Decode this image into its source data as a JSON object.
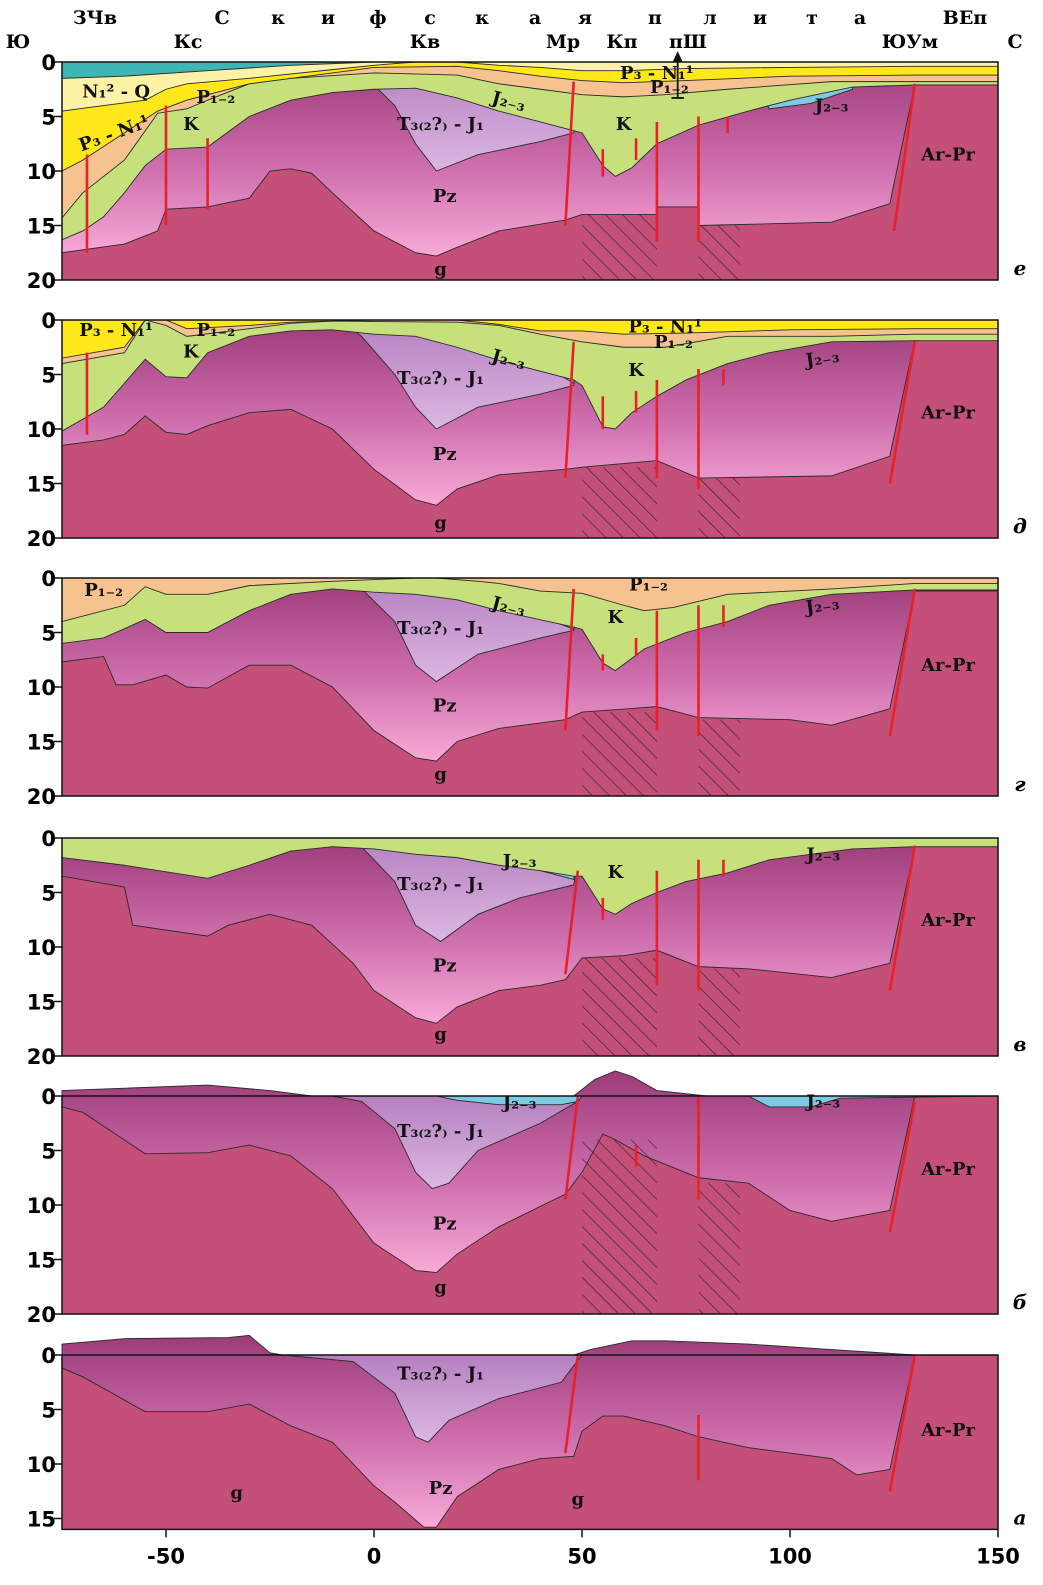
{
  "header": {
    "top_labels": [
      "ЗЧв",
      "ВЕп"
    ],
    "title_letters": [
      "С",
      "к",
      "и",
      "ф",
      "с",
      "к",
      "а",
      "я",
      "п",
      "л",
      "и",
      "т",
      "а"
    ],
    "structure_labels": [
      "Ю",
      "Кс",
      "Кв",
      "Мр",
      "Кп",
      "пШ",
      "ЮУм",
      "С"
    ]
  },
  "xlim": [
    -75,
    150
  ],
  "xticks": [
    -50,
    0,
    50,
    100,
    150
  ],
  "panels": [
    {
      "letter": "е",
      "ylim": [
        0,
        20
      ],
      "yticks": [
        0,
        5,
        10,
        15,
        20
      ],
      "labels": [
        "N₁² - Q",
        "P₁₋₂",
        "P₃ - N₁¹",
        "K",
        "T₃₍₂?₎ - J₁",
        "J₂₋₃",
        "P₃ - N₁¹",
        "P₁₋₂",
        "K",
        "J₂₋₃",
        "Pz",
        "g",
        "Ar-Pr"
      ]
    },
    {
      "letter": "д",
      "ylim": [
        0,
        20
      ],
      "yticks": [
        0,
        5,
        10,
        15,
        20
      ],
      "labels": [
        "P₃ - N₁¹",
        "P₁₋₂",
        "K",
        "T₃₍₂?₎ - J₁",
        "J₂₋₃",
        "P₃ - N₁¹",
        "P₁₋₂",
        "K",
        "J₂₋₃",
        "Pz",
        "g",
        "Ar-Pr"
      ]
    },
    {
      "letter": "г",
      "ylim": [
        0,
        20
      ],
      "yticks": [
        0,
        5,
        10,
        15,
        20
      ],
      "labels": [
        "P₁₋₂",
        "T₃₍₂?₎ - J₁",
        "J₂₋₃",
        "P₁₋₂",
        "K",
        "J₂₋₃",
        "Pz",
        "g",
        "Ar-Pr"
      ]
    },
    {
      "letter": "в",
      "ylim": [
        0,
        20
      ],
      "yticks": [
        0,
        5,
        10,
        15,
        20
      ],
      "labels": [
        "J₂₋₃",
        "T₃₍₂?₎ - J₁",
        "K",
        "J₂₋₃",
        "Pz",
        "g",
        "Ar-Pr"
      ]
    },
    {
      "letter": "б",
      "ylim": [
        0,
        20
      ],
      "yticks": [
        0,
        5,
        10,
        15,
        20
      ],
      "labels": [
        "J₂₋₃",
        "T₃₍₂?₎ - J₁",
        "J₂₋₃",
        "Pz",
        "g",
        "Ar-Pr"
      ]
    },
    {
      "letter": "а",
      "ylim": [
        0,
        16
      ],
      "yticks": [
        0,
        5,
        10,
        15
      ],
      "labels": [
        "T₃₍₂?₎ - J₁",
        "Ar-Pr",
        "g",
        "Pz",
        "g"
      ]
    }
  ]
}
